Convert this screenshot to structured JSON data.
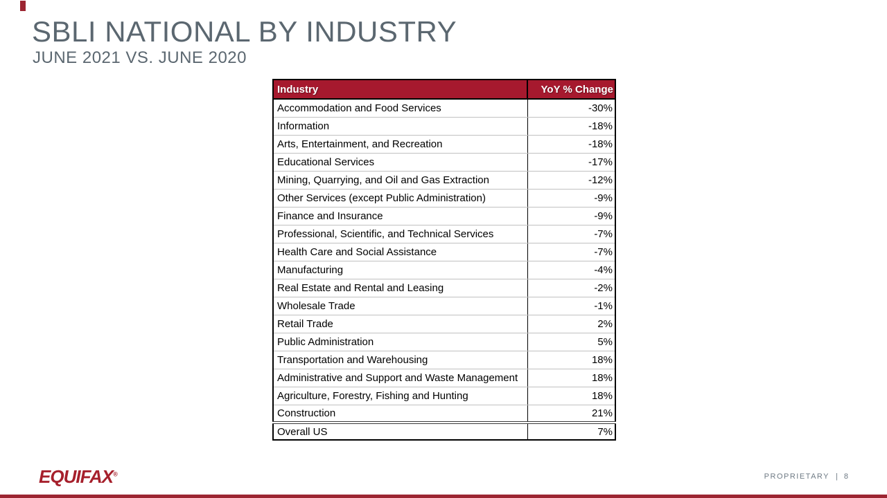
{
  "slide": {
    "title": "SBLI NATIONAL BY INDUSTRY",
    "subtitle": "JUNE 2021 VS. JUNE 2020"
  },
  "colors": {
    "title_text": "#5B6770",
    "table_header_bg": "#A6192E",
    "accent_red": "#9C2531",
    "logo_red": "#A6202C",
    "row_divider": "#C0C0C0",
    "footer_text": "#6E7A84"
  },
  "table": {
    "columns": {
      "industry": "Industry",
      "yoy_change": "YoY % Change"
    },
    "rows": [
      {
        "industry": "Accommodation and Food Services",
        "yoy_change": "-30%"
      },
      {
        "industry": "Information",
        "yoy_change": "-18%"
      },
      {
        "industry": "Arts, Entertainment, and Recreation",
        "yoy_change": "-18%"
      },
      {
        "industry": "Educational Services",
        "yoy_change": "-17%"
      },
      {
        "industry": "Mining, Quarrying, and Oil and Gas Extraction",
        "yoy_change": "-12%"
      },
      {
        "industry": "Other Services (except Public Administration)",
        "yoy_change": "-9%"
      },
      {
        "industry": "Finance and Insurance",
        "yoy_change": "-9%"
      },
      {
        "industry": "Professional, Scientific, and Technical Services",
        "yoy_change": "-7%"
      },
      {
        "industry": "Health Care and Social Assistance",
        "yoy_change": "-7%"
      },
      {
        "industry": "Manufacturing",
        "yoy_change": "-4%"
      },
      {
        "industry": "Real Estate and Rental and Leasing",
        "yoy_change": "-2%"
      },
      {
        "industry": "Wholesale Trade",
        "yoy_change": "-1%"
      },
      {
        "industry": "Retail Trade",
        "yoy_change": "2%"
      },
      {
        "industry": "Public Administration",
        "yoy_change": "5%"
      },
      {
        "industry": "Transportation and Warehousing",
        "yoy_change": "18%"
      },
      {
        "industry": "Administrative and Support and Waste Management",
        "yoy_change": "18%"
      },
      {
        "industry": "Agriculture, Forestry, Fishing and Hunting",
        "yoy_change": "18%"
      },
      {
        "industry": "Construction",
        "yoy_change": "21%"
      },
      {
        "industry": "Overall US",
        "yoy_change": "7%",
        "is_total": true
      }
    ]
  },
  "footer": {
    "logo_text": "EQUIFAX",
    "registered_mark": "®",
    "proprietary_label": "PROPRIETARY",
    "separator": "|",
    "page_number": "8"
  }
}
